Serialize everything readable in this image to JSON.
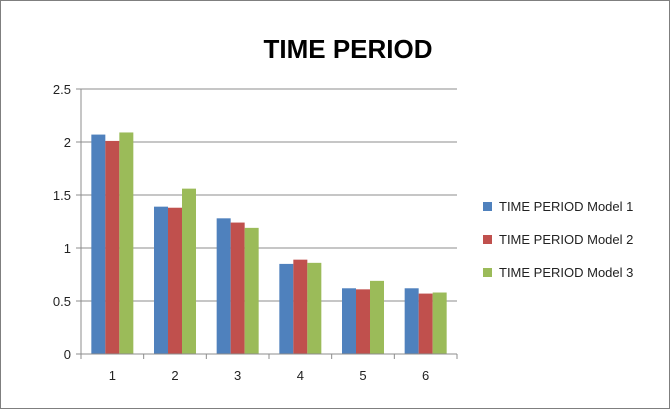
{
  "chart_data": {
    "type": "bar",
    "title": "TIME PERIOD",
    "xlabel": "",
    "ylabel": "",
    "categories": [
      "1",
      "2",
      "3",
      "4",
      "5",
      "6"
    ],
    "ylim": [
      0,
      2.5
    ],
    "yticks": [
      "0",
      "0.5",
      "1",
      "1.5",
      "2",
      "2.5"
    ],
    "grid": true,
    "legend_position": "right",
    "series": [
      {
        "name": "TIME PERIOD Model 1",
        "color": "#4f81bd",
        "values": [
          2.07,
          1.39,
          1.28,
          0.85,
          0.62,
          0.62
        ]
      },
      {
        "name": "TIME PERIOD Model 2",
        "color": "#c0504d",
        "values": [
          2.01,
          1.38,
          1.24,
          0.89,
          0.61,
          0.57
        ]
      },
      {
        "name": "TIME PERIOD Model 3",
        "color": "#9bbb59",
        "values": [
          2.09,
          1.56,
          1.19,
          0.86,
          0.69,
          0.58
        ]
      }
    ]
  }
}
